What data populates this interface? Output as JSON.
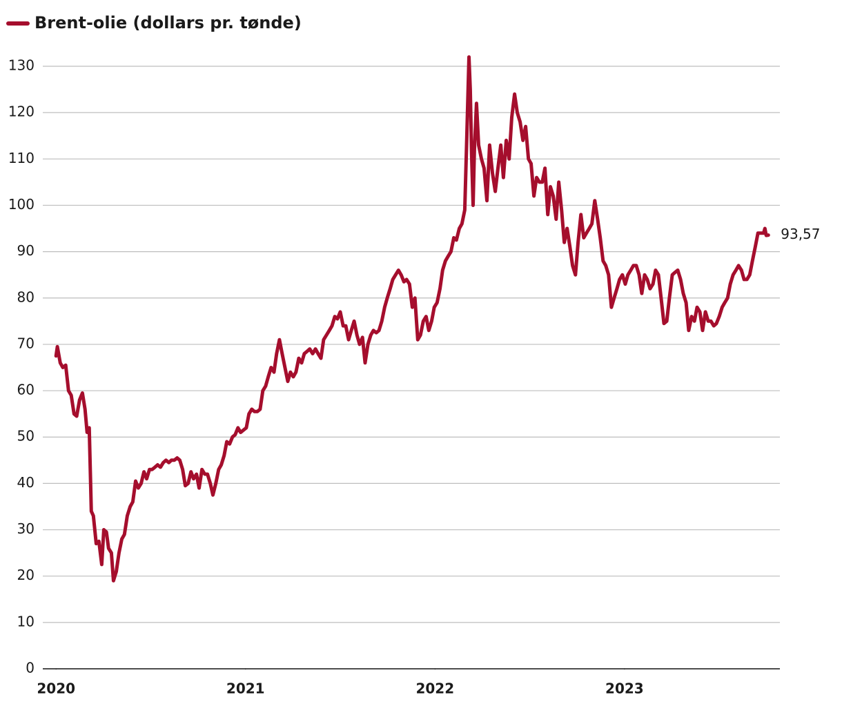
{
  "chart_data": {
    "type": "line",
    "series": [
      {
        "name": "Brent-olie (dollars pr. tønde)",
        "color": "#a50e2d",
        "values": [
          67.5,
          69.5,
          66,
          65,
          65.5,
          60,
          59,
          55,
          54.5,
          58,
          59.5,
          56,
          51,
          52,
          34,
          33,
          27,
          27.5,
          22.5,
          30,
          29.5,
          26,
          25,
          19,
          21,
          25,
          28,
          29,
          33,
          35,
          36,
          40.5,
          39,
          40,
          42.5,
          41,
          43,
          43,
          43.5,
          44,
          43.5,
          44.5,
          45,
          44.5,
          45,
          45,
          45.5,
          45,
          43,
          39.5,
          40,
          42.5,
          41,
          42,
          39,
          43,
          42,
          42,
          40,
          37.5,
          40,
          43,
          44,
          46,
          49,
          48.5,
          50,
          50.5,
          52,
          51,
          51.5,
          52,
          55,
          56,
          55.5,
          55.5,
          56,
          60,
          61,
          63,
          65,
          64,
          68,
          71,
          68,
          65,
          62,
          64,
          63,
          64,
          67,
          66,
          68,
          68.5,
          69,
          68,
          69,
          68,
          67,
          71,
          72,
          73,
          74,
          76,
          75.5,
          77,
          74,
          74,
          71,
          73,
          75,
          72,
          70,
          71.5,
          66,
          70,
          72,
          73,
          72.5,
          73,
          75,
          78,
          80,
          82,
          84,
          85,
          86,
          85,
          83.5,
          84,
          83,
          78,
          80,
          71,
          72,
          75,
          76,
          73,
          75,
          78,
          79,
          82,
          86,
          88,
          89,
          90,
          93,
          92.5,
          95,
          96,
          99,
          115,
          132,
          125,
          111,
          100,
          112,
          122,
          113,
          110,
          108,
          101,
          113,
          107,
          103,
          108,
          113,
          106,
          114,
          110,
          119,
          124,
          120,
          118,
          114,
          117,
          110,
          109,
          102,
          106,
          105,
          105,
          108,
          98,
          104,
          102,
          97,
          105,
          99,
          92,
          95,
          91,
          87,
          85,
          92,
          98,
          93,
          94,
          95,
          96,
          101,
          97,
          93,
          88,
          87,
          85,
          78,
          80,
          82,
          84,
          85,
          83,
          85,
          86,
          87,
          87,
          85,
          81,
          85,
          84,
          82,
          83,
          86,
          85,
          80,
          74.5,
          75,
          80,
          85,
          85.5,
          86,
          84,
          81,
          79,
          73,
          76,
          75,
          78,
          77,
          73,
          77,
          75,
          75,
          74,
          74.5,
          76,
          78,
          79,
          80,
          83,
          85,
          86,
          87,
          86,
          84,
          84,
          85,
          88,
          91,
          94,
          94,
          94,
          95,
          93.5,
          93.57
        ]
      }
    ],
    "x": [
      2020.0,
      2020.007,
      2020.022,
      2020.036,
      2020.051,
      2020.066,
      2020.08,
      2020.095,
      2020.109,
      2020.124,
      2020.139,
      2020.153,
      2020.164,
      2020.175,
      2020.186,
      2020.197,
      2020.212,
      2020.226,
      2020.241,
      2020.252,
      2020.266,
      2020.277,
      2020.292,
      2020.303,
      2020.318,
      2020.332,
      2020.347,
      2020.361,
      2020.376,
      2020.391,
      2020.405,
      2020.42,
      2020.434,
      2020.449,
      2020.464,
      2020.478,
      2020.493,
      2020.507,
      2020.522,
      2020.536,
      2020.551,
      2020.566,
      2020.58,
      2020.595,
      2020.609,
      2020.624,
      2020.639,
      2020.653,
      2020.668,
      2020.682,
      2020.697,
      2020.712,
      2020.726,
      2020.741,
      2020.755,
      2020.77,
      2020.785,
      2020.799,
      2020.814,
      2020.828,
      2020.843,
      2020.858,
      2020.872,
      2020.887,
      2020.901,
      2020.916,
      2020.931,
      2020.945,
      2020.96,
      2020.974,
      2020.989,
      2021.004,
      2021.018,
      2021.033,
      2021.047,
      2021.062,
      2021.077,
      2021.091,
      2021.106,
      2021.12,
      2021.135,
      2021.15,
      2021.164,
      2021.179,
      2021.193,
      2021.208,
      2021.223,
      2021.237,
      2021.252,
      2021.266,
      2021.281,
      2021.296,
      2021.31,
      2021.325,
      2021.339,
      2021.354,
      2021.369,
      2021.383,
      2021.398,
      2021.412,
      2021.427,
      2021.442,
      2021.456,
      2021.471,
      2021.485,
      2021.5,
      2021.515,
      2021.529,
      2021.544,
      2021.558,
      2021.573,
      2021.588,
      2021.602,
      2021.617,
      2021.631,
      2021.646,
      2021.661,
      2021.675,
      2021.69,
      2021.704,
      2021.719,
      2021.734,
      2021.748,
      2021.763,
      2021.777,
      2021.792,
      2021.807,
      2021.821,
      2021.836,
      2021.85,
      2021.865,
      2021.88,
      2021.894,
      2021.909,
      2021.923,
      2021.938,
      2021.953,
      2021.967,
      2021.982,
      2021.996,
      2022.011,
      2022.026,
      2022.04,
      2022.055,
      2022.069,
      2022.084,
      2022.099,
      2022.113,
      2022.128,
      2022.142,
      2022.157,
      2022.168,
      2022.179,
      2022.186,
      2022.193,
      2022.201,
      2022.208,
      2022.219,
      2022.23,
      2022.245,
      2022.259,
      2022.274,
      2022.288,
      2022.303,
      2022.318,
      2022.332,
      2022.347,
      2022.361,
      2022.376,
      2022.391,
      2022.405,
      2022.42,
      2022.434,
      2022.449,
      2022.464,
      2022.478,
      2022.493,
      2022.507,
      2022.522,
      2022.536,
      2022.551,
      2022.566,
      2022.58,
      2022.595,
      2022.609,
      2022.624,
      2022.639,
      2022.653,
      2022.668,
      2022.682,
      2022.697,
      2022.712,
      2022.726,
      2022.741,
      2022.755,
      2022.77,
      2022.785,
      2022.799,
      2022.814,
      2022.828,
      2022.843,
      2022.858,
      2022.872,
      2022.887,
      2022.901,
      2022.916,
      2022.931,
      2022.945,
      2022.96,
      2022.974,
      2022.989,
      2023.004,
      2023.018,
      2023.033,
      2023.047,
      2023.062,
      2023.077,
      2023.091,
      2023.106,
      2023.12,
      2023.135,
      2023.15,
      2023.164,
      2023.179,
      2023.193,
      2023.208,
      2023.223,
      2023.237,
      2023.252,
      2023.266,
      2023.281,
      2023.296,
      2023.31,
      2023.325,
      2023.339,
      2023.354,
      2023.369,
      2023.383,
      2023.398,
      2023.412,
      2023.427,
      2023.442,
      2023.456,
      2023.471,
      2023.485,
      2023.5,
      2023.515,
      2023.529,
      2023.544,
      2023.558,
      2023.573,
      2023.588,
      2023.602,
      2023.617,
      2023.631,
      2023.646,
      2023.661,
      2023.675,
      2023.69,
      2023.704,
      2023.719,
      2023.734,
      2023.741,
      2023.748,
      2023.759
    ],
    "end_label": "93,57",
    "xlim": [
      2019.93,
      2023.82
    ],
    "xticks": [
      2020,
      2021,
      2022,
      2023
    ],
    "ylim": [
      0,
      130
    ],
    "yticks": [
      0,
      10,
      20,
      30,
      40,
      50,
      60,
      70,
      80,
      90,
      100,
      110,
      120,
      130
    ],
    "grid": true,
    "legend": "top-left"
  }
}
